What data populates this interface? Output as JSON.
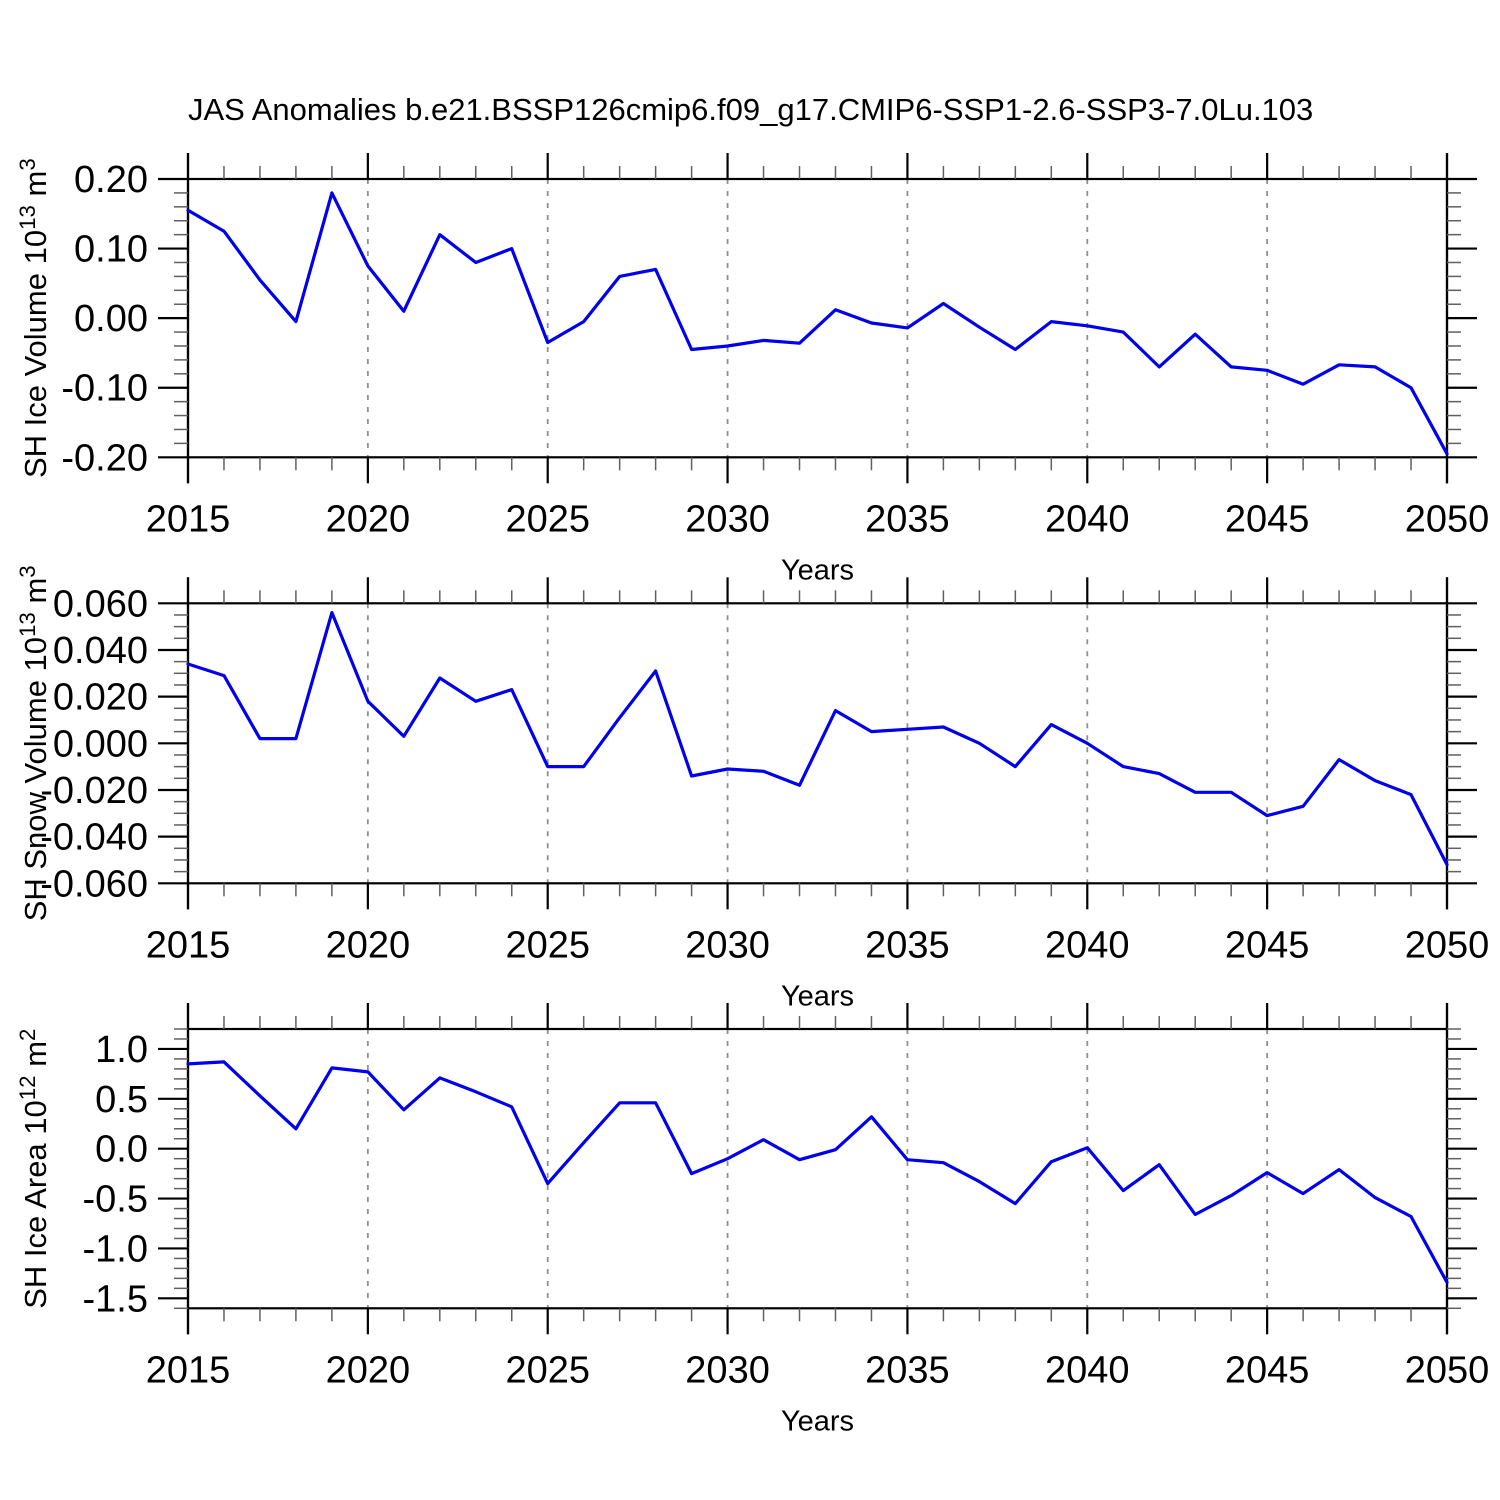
{
  "title": "JAS Anomalies b.e21.BSSP126cmip6.f09_g17.CMIP6-SSP1-2.6-SSP3-7.0Lu.103",
  "chart_data": {
    "type": "line",
    "title": "JAS Anomalies b.e21.BSSP126cmip6.f09_g17.CMIP6-SSP1-2.6-SSP3-7.0Lu.103",
    "line_color": "#0000EE",
    "grid_color": "#909090",
    "legend": "none",
    "x": {
      "label": "Years",
      "lim": [
        2015,
        2050
      ],
      "tick_step_major": 5,
      "tick_step_minor": 1,
      "ticks": [
        2015,
        2020,
        2025,
        2030,
        2035,
        2040,
        2045,
        2050
      ],
      "gridlines": [
        2020,
        2025,
        2030,
        2035,
        2040,
        2045
      ],
      "years": [
        2015,
        2016,
        2017,
        2018,
        2019,
        2020,
        2021,
        2022,
        2023,
        2024,
        2025,
        2026,
        2027,
        2028,
        2029,
        2030,
        2031,
        2032,
        2033,
        2034,
        2035,
        2036,
        2037,
        2038,
        2039,
        2040,
        2041,
        2042,
        2043,
        2044,
        2045,
        2046,
        2047,
        2048,
        2049,
        2050
      ]
    },
    "panels": [
      {
        "name": "SH Ice Volume",
        "ylabel_plain": "SH Ice Volume 10^13 m^3",
        "ylabel_runs": [
          {
            "text": "SH Ice Volume 10",
            "sup": false
          },
          {
            "text": "13",
            "sup": true
          },
          {
            "text": " m",
            "sup": false
          },
          {
            "text": "3",
            "sup": true
          }
        ],
        "ylim": [
          -0.2,
          0.2
        ],
        "yticks": [
          {
            "v": 0.2,
            "label": "0.20"
          },
          {
            "v": 0.1,
            "label": "0.10"
          },
          {
            "v": 0.0,
            "label": "0.00"
          },
          {
            "v": -0.1,
            "label": "-0.10"
          },
          {
            "v": -0.2,
            "label": "-0.20"
          }
        ],
        "yminor_step": 0.02,
        "values": [
          0.155,
          0.125,
          0.055,
          -0.005,
          0.18,
          0.075,
          0.01,
          0.12,
          0.08,
          0.1,
          -0.035,
          -0.005,
          0.06,
          0.07,
          -0.045,
          -0.04,
          -0.032,
          -0.036,
          0.012,
          -0.007,
          -0.014,
          0.021,
          -0.013,
          -0.045,
          -0.005,
          -0.011,
          -0.02,
          -0.07,
          -0.023,
          -0.07,
          -0.075,
          -0.095,
          -0.067,
          -0.07,
          -0.1,
          -0.195
        ]
      },
      {
        "name": "SH Snow Volume",
        "ylabel_plain": "SH Snow Volume 10^13 m^3",
        "ylabel_runs": [
          {
            "text": "SH Snow Volume 10",
            "sup": false
          },
          {
            "text": "13",
            "sup": true
          },
          {
            "text": " m",
            "sup": false
          },
          {
            "text": "3",
            "sup": true
          }
        ],
        "ylim": [
          -0.06,
          0.06
        ],
        "yticks": [
          {
            "v": 0.06,
            "label": "0.060"
          },
          {
            "v": 0.04,
            "label": "0.040"
          },
          {
            "v": 0.02,
            "label": "0.020"
          },
          {
            "v": 0.0,
            "label": "0.000"
          },
          {
            "v": -0.02,
            "label": "-0.020"
          },
          {
            "v": -0.04,
            "label": "-0.040"
          },
          {
            "v": -0.06,
            "label": "-0.060"
          }
        ],
        "yminor_step": 0.005,
        "values": [
          0.034,
          0.029,
          0.002,
          0.002,
          0.056,
          0.018,
          0.003,
          0.028,
          0.018,
          0.023,
          -0.01,
          -0.01,
          0.011,
          0.031,
          -0.014,
          -0.011,
          -0.012,
          -0.018,
          0.014,
          0.005,
          0.006,
          0.007,
          0.0,
          -0.01,
          0.008,
          0.0,
          -0.01,
          -0.013,
          -0.021,
          -0.021,
          -0.031,
          -0.027,
          -0.007,
          -0.016,
          -0.022,
          -0.052
        ]
      },
      {
        "name": "SH Ice Area",
        "ylabel_plain": "SH Ice Area 10^12 m^2",
        "ylabel_runs": [
          {
            "text": "SH Ice Area 10",
            "sup": false
          },
          {
            "text": "12",
            "sup": true
          },
          {
            "text": " m",
            "sup": false
          },
          {
            "text": "2",
            "sup": true
          }
        ],
        "ylim": [
          -1.6,
          1.2
        ],
        "yticks": [
          {
            "v": 1.0,
            "label": "1.0"
          },
          {
            "v": 0.5,
            "label": "0.5"
          },
          {
            "v": 0.0,
            "label": "0.0"
          },
          {
            "v": -0.5,
            "label": "-0.5"
          },
          {
            "v": -1.0,
            "label": "-1.0"
          },
          {
            "v": -1.5,
            "label": "-1.5"
          }
        ],
        "yminor_step": 0.1,
        "values": [
          0.85,
          0.87,
          0.53,
          0.2,
          0.81,
          0.77,
          0.39,
          0.71,
          0.57,
          0.42,
          -0.35,
          0.06,
          0.46,
          0.46,
          -0.25,
          -0.1,
          0.09,
          -0.11,
          -0.01,
          0.32,
          -0.11,
          -0.14,
          -0.33,
          -0.55,
          -0.13,
          0.01,
          -0.42,
          -0.16,
          -0.66,
          -0.47,
          -0.24,
          -0.45,
          -0.21,
          -0.49,
          -0.68,
          -1.34
        ]
      }
    ]
  }
}
